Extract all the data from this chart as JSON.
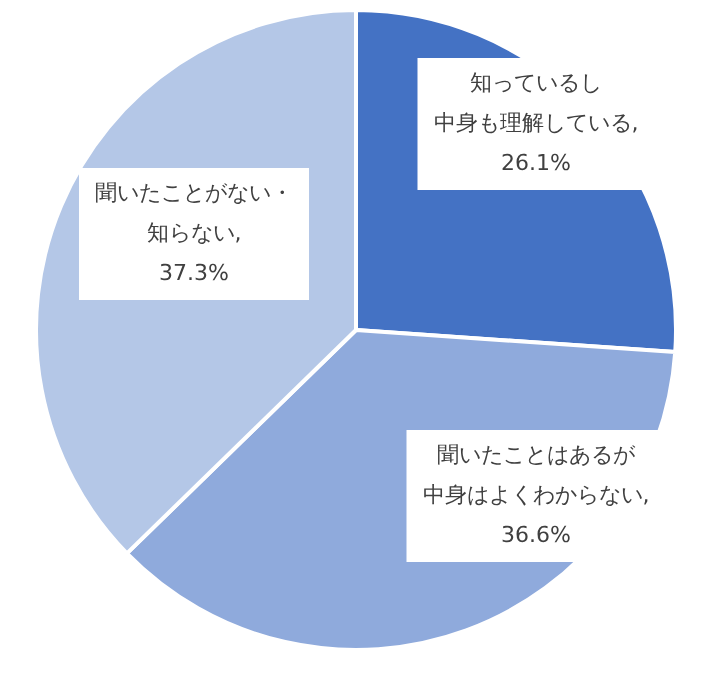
{
  "chart_data": {
    "type": "pie",
    "categories": [
      "知っているし中身も理解している",
      "聞いたことはあるが中身はよくわからない",
      "聞いたことがない・知らない"
    ],
    "values": [
      26.1,
      36.6,
      37.3
    ],
    "value_labels": [
      ",26.1%",
      ",36.6%",
      ",37.3%"
    ],
    "colors": [
      "#4472c4",
      "#8faadc",
      "#b4c7e7"
    ],
    "legend": false
  }
}
